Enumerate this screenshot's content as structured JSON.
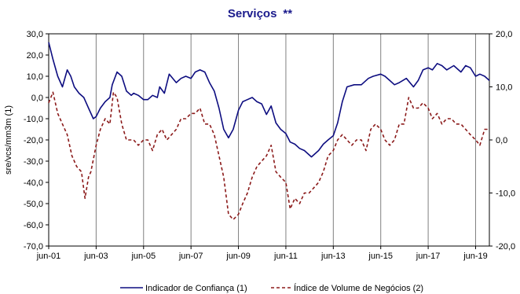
{
  "chart_data": {
    "type": "line",
    "title": "Serviços",
    "title_suffix": "**",
    "ylabel_left": "sre/vcs/mm3m (1)",
    "ylabel_right": "",
    "x_tick_labels": [
      "jun-01",
      "jun-03",
      "jun-05",
      "jun-07",
      "jun-09",
      "jun-11",
      "jun-13",
      "jun-15",
      "jun-17",
      "jun-19"
    ],
    "x_tick_years": [
      2001.42,
      2003.42,
      2005.42,
      2007.42,
      2009.42,
      2011.42,
      2013.42,
      2015.42,
      2017.42,
      2019.42
    ],
    "xlim": [
      2001.42,
      2020.0
    ],
    "ylim_left": [
      -70,
      30
    ],
    "y_ticks_left": [
      "30,0",
      "20,0",
      "10,0",
      "0,0",
      "-10,0",
      "-20,0",
      "-30,0",
      "-40,0",
      "-50,0",
      "-60,0",
      "-70,0"
    ],
    "y_tick_values_left": [
      30,
      20,
      10,
      0,
      -10,
      -20,
      -30,
      -40,
      -50,
      -60,
      -70
    ],
    "ylim_right": [
      -20,
      20
    ],
    "y_ticks_right": [
      "20,0",
      "10,0",
      "0,0",
      "-10,0",
      "-20,0"
    ],
    "y_tick_values_right": [
      20,
      10,
      0,
      -10,
      -20
    ],
    "grid": "vertical",
    "legend_position": "bottom",
    "colors": {
      "series1": "#0d0d80",
      "series2": "#8b1a1a",
      "title": "#1a1a8c"
    },
    "series": [
      {
        "name": "Indicador de Confiança (1)",
        "axis": "left",
        "style": "solid",
        "x": [
          2001.42,
          2001.6,
          2001.8,
          2002.0,
          2002.2,
          2002.35,
          2002.5,
          2002.7,
          2002.9,
          2003.1,
          2003.3,
          2003.42,
          2003.6,
          2003.8,
          2004.0,
          2004.1,
          2004.3,
          2004.5,
          2004.7,
          2004.9,
          2005.0,
          2005.2,
          2005.42,
          2005.6,
          2005.8,
          2006.0,
          2006.1,
          2006.3,
          2006.5,
          2006.8,
          2007.0,
          2007.2,
          2007.42,
          2007.6,
          2007.8,
          2008.0,
          2008.2,
          2008.4,
          2008.6,
          2008.8,
          2009.0,
          2009.2,
          2009.42,
          2009.6,
          2009.8,
          2010.0,
          2010.2,
          2010.4,
          2010.6,
          2010.8,
          2011.0,
          2011.2,
          2011.42,
          2011.6,
          2011.8,
          2012.0,
          2012.2,
          2012.5,
          2012.8,
          2013.0,
          2013.2,
          2013.42,
          2013.6,
          2013.8,
          2014.0,
          2014.3,
          2014.6,
          2014.9,
          2015.1,
          2015.42,
          2015.6,
          2015.8,
          2016.0,
          2016.2,
          2016.5,
          2016.8,
          2017.0,
          2017.2,
          2017.42,
          2017.6,
          2017.8,
          2018.0,
          2018.2,
          2018.5,
          2018.8,
          2019.0,
          2019.2,
          2019.42,
          2019.6,
          2019.8,
          2020.0
        ],
        "y": [
          26,
          18,
          10,
          5,
          13,
          10,
          5,
          2,
          0,
          -5,
          -10,
          -9,
          -5,
          -2,
          0,
          6,
          12,
          10,
          3,
          1,
          2,
          1,
          -1,
          -1,
          1,
          0,
          5,
          2,
          11,
          7,
          9,
          10,
          9,
          12,
          13,
          12,
          7,
          3,
          -5,
          -15,
          -19,
          -15,
          -6,
          -2,
          -1,
          0,
          -2,
          -3,
          -8,
          -4,
          -12,
          -15,
          -17,
          -21,
          -22,
          -24,
          -25,
          -28,
          -25,
          -22,
          -20,
          -18,
          -12,
          -2,
          5,
          6,
          6,
          9,
          10,
          11,
          10,
          8,
          6,
          7,
          9,
          5,
          8,
          13,
          14,
          13,
          16,
          15,
          13,
          15,
          12,
          15,
          14,
          10,
          11,
          10,
          8
        ]
      },
      {
        "name": "Índice de Volume de Negócios (2)",
        "axis": "right",
        "style": "dashed",
        "x": [
          2001.42,
          2001.6,
          2001.8,
          2002.0,
          2002.2,
          2002.4,
          2002.6,
          2002.8,
          2002.95,
          2003.1,
          2003.2,
          2003.42,
          2003.6,
          2003.8,
          2004.0,
          2004.15,
          2004.3,
          2004.5,
          2004.7,
          2004.9,
          2005.0,
          2005.2,
          2005.42,
          2005.6,
          2005.8,
          2006.0,
          2006.2,
          2006.4,
          2006.6,
          2006.8,
          2007.0,
          2007.2,
          2007.42,
          2007.6,
          2007.8,
          2008.0,
          2008.2,
          2008.4,
          2008.6,
          2008.8,
          2009.0,
          2009.2,
          2009.42,
          2009.6,
          2009.8,
          2010.0,
          2010.2,
          2010.4,
          2010.6,
          2010.8,
          2011.0,
          2011.2,
          2011.42,
          2011.6,
          2011.8,
          2012.0,
          2012.2,
          2012.4,
          2012.6,
          2012.8,
          2013.0,
          2013.2,
          2013.42,
          2013.6,
          2013.8,
          2014.0,
          2014.2,
          2014.4,
          2014.6,
          2014.8,
          2015.0,
          2015.2,
          2015.42,
          2015.6,
          2015.8,
          2016.0,
          2016.2,
          2016.4,
          2016.6,
          2016.8,
          2017.0,
          2017.2,
          2017.42,
          2017.6,
          2017.8,
          2018.0,
          2018.2,
          2018.4,
          2018.6,
          2018.8,
          2019.0,
          2019.2,
          2019.42,
          2019.6,
          2019.8,
          2020.0
        ],
        "y": [
          7,
          9,
          5,
          3,
          1,
          -3,
          -5,
          -6,
          -11,
          -7,
          -6,
          -1,
          2,
          4,
          3,
          9,
          8,
          3,
          0,
          0,
          0,
          -1,
          0,
          0,
          -2,
          1,
          2,
          0,
          1,
          2,
          4,
          4,
          5,
          5,
          6,
          3,
          3,
          1,
          -3,
          -7,
          -14,
          -15,
          -14,
          -12,
          -10,
          -7,
          -5,
          -4,
          -3,
          -1,
          -6,
          -7,
          -8,
          -13,
          -11,
          -12,
          -10,
          -10,
          -9,
          -8,
          -6,
          -3,
          -2,
          0,
          1,
          0,
          -1,
          0,
          0,
          -2,
          2,
          3,
          2,
          0,
          -1,
          0,
          3,
          3,
          8,
          6,
          6,
          7,
          6,
          4,
          5,
          3,
          4,
          4,
          3,
          3,
          2,
          1,
          0,
          -1,
          2,
          2
        ]
      }
    ]
  }
}
